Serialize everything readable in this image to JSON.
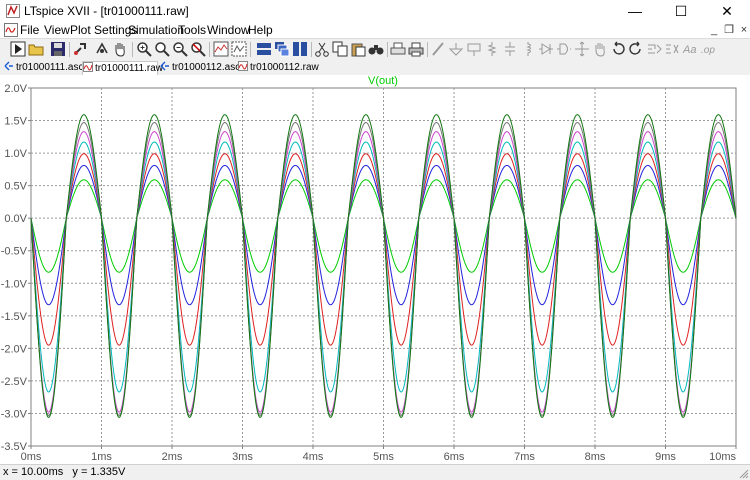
{
  "window": {
    "title": "LTspice XVII - [tr01000111.raw]",
    "minimize_glyph": "—",
    "maximize_glyph": "☐",
    "close_glyph": "✕"
  },
  "menu": {
    "items": [
      "File",
      "View",
      "Plot Settings",
      "Simulation",
      "Tools",
      "Window",
      "Help"
    ],
    "mdi_minimize": "_",
    "mdi_restore": "❐",
    "mdi_close": "×"
  },
  "toolbar": {
    "icons": [
      "run-icon",
      "open-icon",
      "save-icon",
      "control-panel-icon",
      "halt-icon",
      "pan-icon",
      "zoom-in-icon",
      "zoom-fit-icon",
      "zoom-out-icon",
      "cancel-zoom-icon",
      "autorange-icon",
      "fit-icon",
      "tile-horizontal-icon",
      "cascade-icon",
      "tile-vertical-icon",
      "cut-icon",
      "copy-icon",
      "paste-icon",
      "find-icon",
      "print-preview-icon",
      "print-icon",
      "wire-icon",
      "ground-icon",
      "label-net-icon",
      "resistor-icon",
      "capacitor-icon",
      "inductor-icon",
      "diode-icon",
      "component-icon",
      "move-icon",
      "drag-icon",
      "undo-icon",
      "redo-icon",
      "rotate-icon",
      "mirror-icon",
      "text-icon",
      "spice-directive-icon"
    ]
  },
  "tabs": [
    {
      "label": "tr01000111.asc",
      "kind": "schematic",
      "active": false
    },
    {
      "label": "tr01000111.raw",
      "kind": "waveform",
      "active": true
    },
    {
      "label": "tr01000112.asc",
      "kind": "schematic",
      "active": false
    },
    {
      "label": "tr01000112.raw",
      "kind": "waveform",
      "active": false
    }
  ],
  "chart_data": {
    "type": "line",
    "title": "V(out)",
    "title_color": "#00cc00",
    "xlabel": "",
    "ylabel": "",
    "xlim": [
      0,
      10
    ],
    "ylim": [
      -3.5,
      2.0
    ],
    "x_ticks": [
      0,
      1,
      2,
      3,
      4,
      5,
      6,
      7,
      8,
      9,
      10
    ],
    "x_tick_labels": [
      "0ms",
      "1ms",
      "2ms",
      "3ms",
      "4ms",
      "5ms",
      "6ms",
      "7ms",
      "8ms",
      "9ms",
      "10ms"
    ],
    "y_ticks": [
      2.0,
      1.5,
      1.0,
      0.5,
      0.0,
      -0.5,
      -1.0,
      -1.5,
      -2.0,
      -2.5,
      -3.0,
      -3.5
    ],
    "y_tick_labels": [
      "2.0V",
      "1.5V",
      "1.0V",
      "0.5V",
      "0.0V",
      "-0.5V",
      "-1.0V",
      "-1.5V",
      "-2.0V",
      "-2.5V",
      "-3.0V",
      "-3.5V"
    ],
    "grid": true,
    "frequency_hz": 1000,
    "x_unit": "ms",
    "series": [
      {
        "color": "#00cc00",
        "peak": 0.59,
        "trough": -0.83
      },
      {
        "color": "#2222dd",
        "peak": 0.81,
        "trough": -1.33
      },
      {
        "color": "#dd2222",
        "peak": 0.99,
        "trough": -1.95
      },
      {
        "color": "#00bbbb",
        "peak": 1.17,
        "trough": -2.67
      },
      {
        "color": "#cc44cc",
        "peak": 1.33,
        "trough": -2.98
      },
      {
        "color": "#777777",
        "peak": 1.47,
        "trough": -3.03
      },
      {
        "color": "#117711",
        "peak": 1.59,
        "trough": -3.06
      }
    ]
  },
  "status": {
    "cursor_text": "x = 10.00ms   y = 1.335V"
  }
}
